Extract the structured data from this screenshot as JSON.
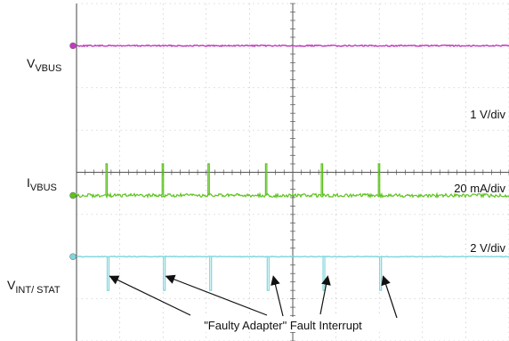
{
  "chart_data": {
    "type": "line",
    "x_divisions": 10,
    "y_divisions": 8,
    "grid": true,
    "colors": {
      "vbus": "#c23ac0",
      "ibus": "#5cc21c",
      "vint": "#7fd6dc",
      "grid_major": "#9a9a9a",
      "grid_minor": "#b8b8b8",
      "arrow": "#111111"
    },
    "channels": [
      {
        "key": "vbus",
        "label_main": "V",
        "label_sub": "VBUS",
        "scale": "1 V/div",
        "baseline_div": 1.0,
        "events": []
      },
      {
        "key": "ibus",
        "label_main": "I",
        "label_sub": "VBUS",
        "scale": "20 mA/div",
        "baseline_div": 4.55,
        "spike_height_div": 0.75,
        "events": [
          0.68,
          1.98,
          3.04,
          4.37,
          5.66,
          6.98
        ]
      },
      {
        "key": "vint",
        "label_main": "V",
        "label_sub": "INT/ STAT",
        "scale": "2 V/div",
        "baseline_div": 6.0,
        "dip_depth_div": 0.8,
        "events": [
          0.71,
          2.01,
          3.08,
          4.41,
          5.7,
          7.01
        ]
      }
    ],
    "annotation": {
      "text": "\"Faulty Adapter\" Fault Interrupt",
      "arrow_targets": [
        0.77,
        2.07,
        4.55,
        5.81,
        7.09
      ]
    }
  }
}
